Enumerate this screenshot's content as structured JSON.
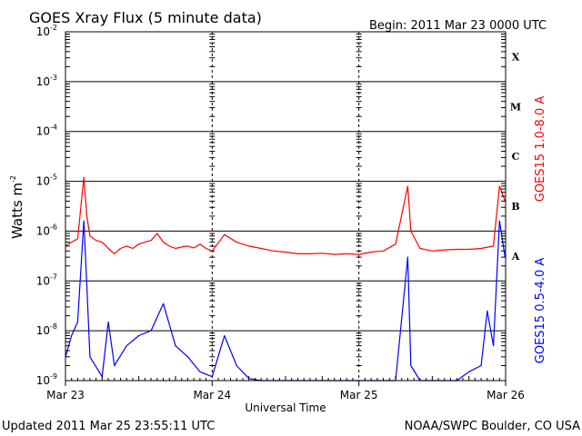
{
  "header": {
    "title": "GOES Xray Flux (5 minute data)",
    "begin": "Begin:  2011 Mar 23 0000 UTC"
  },
  "footer": {
    "updated": "Updated 2011 Mar 25 23:55:11 UTC",
    "source": "NOAA/SWPC Boulder, CO USA"
  },
  "chart_data": {
    "type": "line",
    "title": "GOES Xray Flux (5 minute data)",
    "xlabel": "Universal Time",
    "ylabel_base": "Watts m",
    "ylabel_sup": "-2",
    "y_scale": "log",
    "ylim": [
      1e-09,
      0.01
    ],
    "y_ticks": [
      {
        "value": 1e-09,
        "base": "10",
        "exp": "-9"
      },
      {
        "value": 1e-08,
        "base": "10",
        "exp": "-8"
      },
      {
        "value": 1e-07,
        "base": "10",
        "exp": "-7"
      },
      {
        "value": 1e-06,
        "base": "10",
        "exp": "-6"
      },
      {
        "value": 1e-05,
        "base": "10",
        "exp": "-5"
      },
      {
        "value": 0.0001,
        "base": "10",
        "exp": "-4"
      },
      {
        "value": 0.001,
        "base": "10",
        "exp": "-3"
      },
      {
        "value": 0.01,
        "base": "10",
        "exp": "-2"
      }
    ],
    "x_ticks": [
      {
        "value": "2011-03-23T00:00",
        "label": "Mar 23"
      },
      {
        "value": "2011-03-24T00:00",
        "label": "Mar 24"
      },
      {
        "value": "2011-03-25T00:00",
        "label": "Mar 25"
      },
      {
        "value": "2011-03-26T00:00",
        "label": "Mar 26"
      }
    ],
    "xlim": [
      "2011-03-23T00:00",
      "2011-03-26T00:00"
    ],
    "grid": {
      "horizontal": true,
      "day_separators": true
    },
    "flare_classes": [
      {
        "label": "A",
        "value": 1e-07
      },
      {
        "label": "B",
        "value": 1e-06
      },
      {
        "label": "C",
        "value": 1e-05
      },
      {
        "label": "M",
        "value": 0.0001
      },
      {
        "label": "X",
        "value": 0.001
      }
    ],
    "colors": {
      "long": "#ff0000",
      "short": "#0000ff"
    },
    "series": [
      {
        "name": "GOES15 1.0-8.0 A",
        "color": "#ff0000",
        "points": [
          [
            "2011-03-23T00:00",
            5e-07
          ],
          [
            "2011-03-23T01:00",
            6e-07
          ],
          [
            "2011-03-23T02:00",
            7e-07
          ],
          [
            "2011-03-23T03:00",
            1.2e-05
          ],
          [
            "2011-03-23T03:30",
            2e-06
          ],
          [
            "2011-03-23T04:00",
            8e-07
          ],
          [
            "2011-03-23T05:00",
            6.5e-07
          ],
          [
            "2011-03-23T06:00",
            6e-07
          ],
          [
            "2011-03-23T07:00",
            4.5e-07
          ],
          [
            "2011-03-23T08:00",
            3.5e-07
          ],
          [
            "2011-03-23T09:00",
            4.5e-07
          ],
          [
            "2011-03-23T10:00",
            5e-07
          ],
          [
            "2011-03-23T11:00",
            4.5e-07
          ],
          [
            "2011-03-23T12:00",
            5.5e-07
          ],
          [
            "2011-03-23T13:00",
            6e-07
          ],
          [
            "2011-03-23T14:00",
            6.5e-07
          ],
          [
            "2011-03-23T15:00",
            9e-07
          ],
          [
            "2011-03-23T16:00",
            6e-07
          ],
          [
            "2011-03-23T17:00",
            5e-07
          ],
          [
            "2011-03-23T18:00",
            4.5e-07
          ],
          [
            "2011-03-23T19:00",
            4.8e-07
          ],
          [
            "2011-03-23T20:00",
            5e-07
          ],
          [
            "2011-03-23T21:00",
            4.6e-07
          ],
          [
            "2011-03-23T22:00",
            5.5e-07
          ],
          [
            "2011-03-23T23:00",
            4.5e-07
          ],
          [
            "2011-03-24T00:00",
            4e-07
          ],
          [
            "2011-03-24T02:00",
            8.5e-07
          ],
          [
            "2011-03-24T04:00",
            6e-07
          ],
          [
            "2011-03-24T06:00",
            5e-07
          ],
          [
            "2011-03-24T08:00",
            4.5e-07
          ],
          [
            "2011-03-24T10:00",
            4e-07
          ],
          [
            "2011-03-24T12:00",
            3.8e-07
          ],
          [
            "2011-03-24T14:00",
            3.5e-07
          ],
          [
            "2011-03-24T16:00",
            3.5e-07
          ],
          [
            "2011-03-24T18:00",
            3.6e-07
          ],
          [
            "2011-03-24T20:00",
            3.4e-07
          ],
          [
            "2011-03-24T22:00",
            3.5e-07
          ],
          [
            "2011-03-25T00:00",
            3.4e-07
          ],
          [
            "2011-03-25T02:00",
            3.8e-07
          ],
          [
            "2011-03-25T04:00",
            4e-07
          ],
          [
            "2011-03-25T06:00",
            5.5e-07
          ],
          [
            "2011-03-25T08:00",
            8e-06
          ],
          [
            "2011-03-25T08:30",
            1e-06
          ],
          [
            "2011-03-25T10:00",
            4.5e-07
          ],
          [
            "2011-03-25T12:00",
            4e-07
          ],
          [
            "2011-03-25T14:00",
            4.2e-07
          ],
          [
            "2011-03-25T16:00",
            4.3e-07
          ],
          [
            "2011-03-25T18:00",
            4.3e-07
          ],
          [
            "2011-03-25T20:00",
            4.5e-07
          ],
          [
            "2011-03-25T22:00",
            5e-07
          ],
          [
            "2011-03-25T23:00",
            8e-06
          ],
          [
            "2011-03-25T23:55",
            4e-06
          ]
        ]
      },
      {
        "name": "GOES15 0.5-4.0 A",
        "color": "#0000ff",
        "points": [
          [
            "2011-03-23T00:00",
            3e-09
          ],
          [
            "2011-03-23T01:00",
            8e-09
          ],
          [
            "2011-03-23T02:00",
            1.5e-08
          ],
          [
            "2011-03-23T03:00",
            1.6e-06
          ],
          [
            "2011-03-23T03:30",
            8e-08
          ],
          [
            "2011-03-23T04:00",
            3e-09
          ],
          [
            "2011-03-23T06:00",
            1.2e-09
          ],
          [
            "2011-03-23T07:00",
            1.5e-08
          ],
          [
            "2011-03-23T08:00",
            2e-09
          ],
          [
            "2011-03-23T10:00",
            5e-09
          ],
          [
            "2011-03-23T12:00",
            8e-09
          ],
          [
            "2011-03-23T14:00",
            1e-08
          ],
          [
            "2011-03-23T16:00",
            3.5e-08
          ],
          [
            "2011-03-23T18:00",
            5e-09
          ],
          [
            "2011-03-23T20:00",
            3e-09
          ],
          [
            "2011-03-23T22:00",
            1.5e-09
          ],
          [
            "2011-03-24T00:00",
            1.2e-09
          ],
          [
            "2011-03-24T02:00",
            8e-09
          ],
          [
            "2011-03-24T04:00",
            2e-09
          ],
          [
            "2011-03-24T06:00",
            1.1e-09
          ],
          [
            "2011-03-24T08:00",
            1e-09
          ],
          [
            "2011-03-24T10:00",
            1e-09
          ],
          [
            "2011-03-24T12:00",
            1e-09
          ],
          [
            "2011-03-24T14:00",
            1e-09
          ],
          [
            "2011-03-24T16:00",
            1e-09
          ],
          [
            "2011-03-24T18:00",
            1e-09
          ],
          [
            "2011-03-24T20:00",
            1e-09
          ],
          [
            "2011-03-24T22:00",
            1e-09
          ],
          [
            "2011-03-25T00:00",
            1e-09
          ],
          [
            "2011-03-25T02:00",
            1e-09
          ],
          [
            "2011-03-25T04:00",
            1e-09
          ],
          [
            "2011-03-25T06:00",
            1e-09
          ],
          [
            "2011-03-25T08:00",
            3e-07
          ],
          [
            "2011-03-25T08:30",
            2e-09
          ],
          [
            "2011-03-25T10:00",
            1e-09
          ],
          [
            "2011-03-25T12:00",
            1e-09
          ],
          [
            "2011-03-25T14:00",
            1e-09
          ],
          [
            "2011-03-25T16:00",
            1e-09
          ],
          [
            "2011-03-25T18:00",
            1.5e-09
          ],
          [
            "2011-03-25T20:00",
            2e-09
          ],
          [
            "2011-03-25T21:00",
            2.5e-08
          ],
          [
            "2011-03-25T22:00",
            5e-09
          ],
          [
            "2011-03-25T23:00",
            1.6e-06
          ],
          [
            "2011-03-25T23:55",
            3e-07
          ]
        ]
      }
    ]
  }
}
